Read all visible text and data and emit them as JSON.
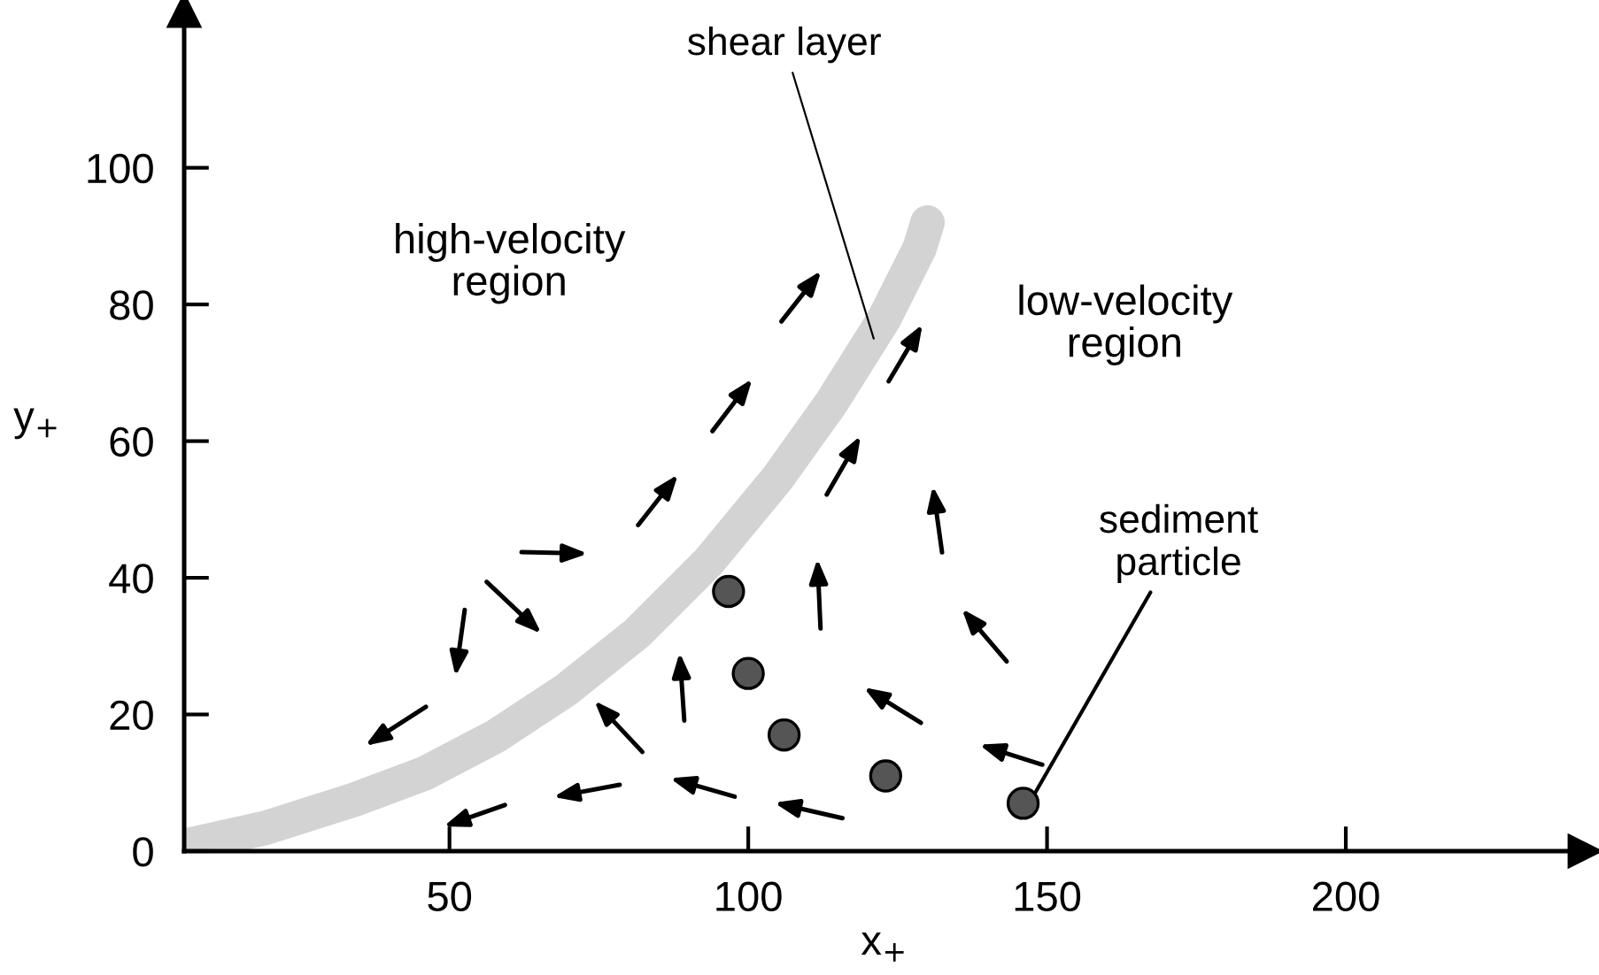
{
  "chart_data": {
    "type": "scatter",
    "xlabel": "x$_{+}$",
    "ylabel": "y$_{+}$",
    "xlim": [
      5.6,
      240
    ],
    "ylim": [
      0,
      123
    ],
    "xticks": [
      50,
      100,
      150,
      200
    ],
    "yticks": [
      0,
      20,
      40,
      60,
      80,
      100
    ],
    "grid": false,
    "legend": false,
    "series": [
      {
        "type": "line",
        "color": "#d3d3d3",
        "x": [
          5.9,
          19.2,
          34,
          45.9,
          57.7,
          69.5,
          81.4,
          93.2,
          105,
          113.9,
          122.8,
          128.7,
          130
        ],
        "values": [
          0.8,
          3.4,
          7.5,
          11.4,
          16.8,
          23.6,
          31.9,
          42.2,
          54.7,
          65.6,
          78,
          88.3,
          92
        ]
      },
      {
        "color": "#555555",
        "marker": "circle",
        "x": [
          96.7,
          100,
          106,
          123,
          146
        ],
        "values": [
          38,
          26,
          17,
          11,
          7
        ]
      }
    ],
    "annotations": [
      "high-velocity\nregion",
      "low-velocity\nregion",
      {
        "text": "shear layer",
        "x": 121,
        "y": 75
      },
      {
        "text": "sediment\nparticle",
        "x": 147,
        "y": 7
      }
    ]
  }
}
